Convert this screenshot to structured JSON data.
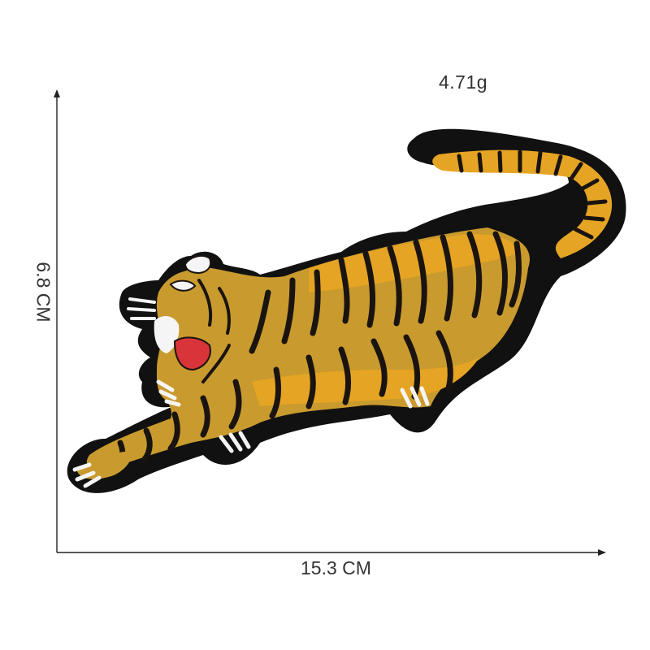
{
  "product": {
    "weight": "4.71g",
    "width": "15.3 CM",
    "height": "6.8 CM"
  },
  "colors": {
    "outline": "#111111",
    "fur_gold": "#c99a2e",
    "fur_orange": "#e5a423",
    "stripe": "#1a1410",
    "mouth_red": "#d8343a",
    "claw_white": "#f5f5f5",
    "dimension_line": "#222222"
  },
  "icons": {
    "patch_image": "embroidered-tiger-patch",
    "arrow": "arrow-head"
  }
}
